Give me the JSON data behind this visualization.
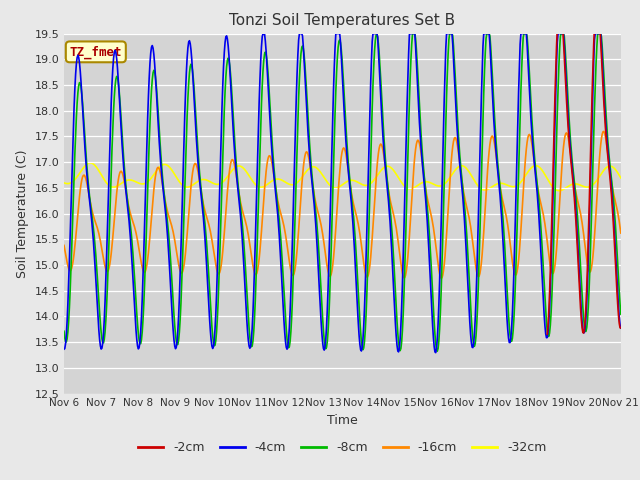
{
  "title": "Tonzi Soil Temperatures Set B",
  "xlabel": "Time",
  "ylabel": "Soil Temperature (C)",
  "ylim": [
    12.5,
    19.5
  ],
  "background_color": "#e8e8e8",
  "plot_bg_color": "#d4d4d4",
  "grid_color": "#ffffff",
  "series": {
    "-2cm": {
      "color": "#cc0000",
      "lw": 1.2
    },
    "-4cm": {
      "color": "#0000ee",
      "lw": 1.2
    },
    "-8cm": {
      "color": "#00bb00",
      "lw": 1.2
    },
    "-16cm": {
      "color": "#ff8800",
      "lw": 1.2
    },
    "-32cm": {
      "color": "#ffff00",
      "lw": 1.2
    }
  },
  "annotation_text": "TZ_fmet",
  "annotation_color": "#aa0000",
  "annotation_bg": "#ffffcc",
  "annotation_border": "#aa8800",
  "yticks": [
    12.5,
    13.0,
    13.5,
    14.0,
    14.5,
    15.0,
    15.5,
    16.0,
    16.5,
    17.0,
    17.5,
    18.0,
    18.5,
    19.0,
    19.5
  ],
  "xtick_labels": [
    "Nov 6",
    "Nov 7",
    "Nov 8",
    "Nov 9",
    "Nov 10",
    "Nov 11",
    "Nov 12",
    "Nov 13",
    "Nov 14",
    "Nov 15",
    "Nov 16",
    "Nov 17",
    "Nov 18",
    "Nov 19",
    "Nov 20",
    "Nov 21"
  ],
  "xtick_positions": [
    0,
    1,
    2,
    3,
    4,
    5,
    6,
    7,
    8,
    9,
    10,
    11,
    12,
    13,
    14,
    15
  ],
  "n_days": 15
}
